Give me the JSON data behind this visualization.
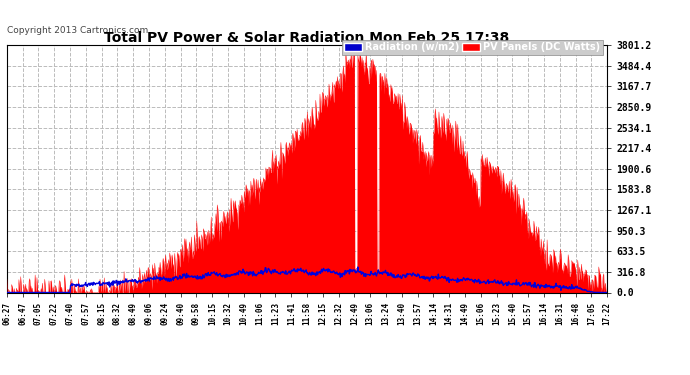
{
  "title": "Total PV Power & Solar Radiation Mon Feb 25 17:38",
  "copyright": "Copyright 2013 Cartronics.com",
  "legend_radiation": "Radiation (w/m2)",
  "legend_pv": "PV Panels (DC Watts)",
  "yticks": [
    0.0,
    316.8,
    633.5,
    950.3,
    1267.1,
    1583.8,
    1900.6,
    2217.4,
    2534.1,
    2850.9,
    3167.7,
    3484.4,
    3801.2
  ],
  "ymax": 3801.2,
  "bg_color": "#ffffff",
  "plot_bg_color": "#ffffff",
  "grid_color": "#bbbbbb",
  "fill_color": "#ff0000",
  "radiation_color": "#0000dd",
  "legend_rad_bg": "#0000cc",
  "legend_pv_bg": "#ff0000",
  "xtick_labels": [
    "06:27",
    "06:47",
    "07:05",
    "07:22",
    "07:40",
    "07:57",
    "08:15",
    "08:32",
    "08:49",
    "09:06",
    "09:24",
    "09:40",
    "09:58",
    "10:15",
    "10:32",
    "10:49",
    "11:06",
    "11:23",
    "11:41",
    "11:58",
    "12:15",
    "12:32",
    "12:49",
    "13:06",
    "13:24",
    "13:40",
    "13:57",
    "14:14",
    "14:31",
    "14:49",
    "15:06",
    "15:23",
    "15:40",
    "15:57",
    "16:14",
    "16:31",
    "16:48",
    "17:05",
    "17:22"
  ]
}
